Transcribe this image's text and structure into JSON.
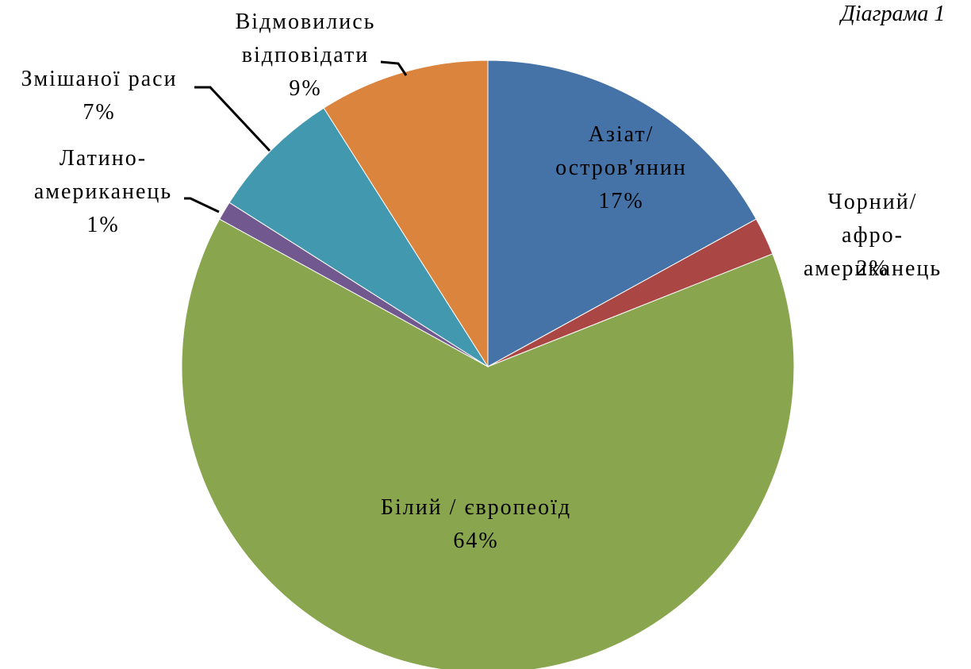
{
  "chart_data": {
    "type": "pie",
    "title": "Діаграма 1",
    "categories": [
      "Азіат/\nостров'янин",
      "Чорний/ афро-\nамериканець",
      "Білий / європеоїд",
      "Латино-\nамериканець",
      "Змішаної раси",
      "Відмовились\nвідповідати"
    ],
    "values": [
      17,
      2,
      64,
      1,
      7,
      9
    ],
    "value_labels": [
      "17%",
      "2%",
      "64%",
      "1%",
      "7%",
      "9%"
    ],
    "colors": [
      "#4572a7",
      "#aa4643",
      "#89a54e",
      "#71588f",
      "#4198af",
      "#db843d"
    ]
  }
}
